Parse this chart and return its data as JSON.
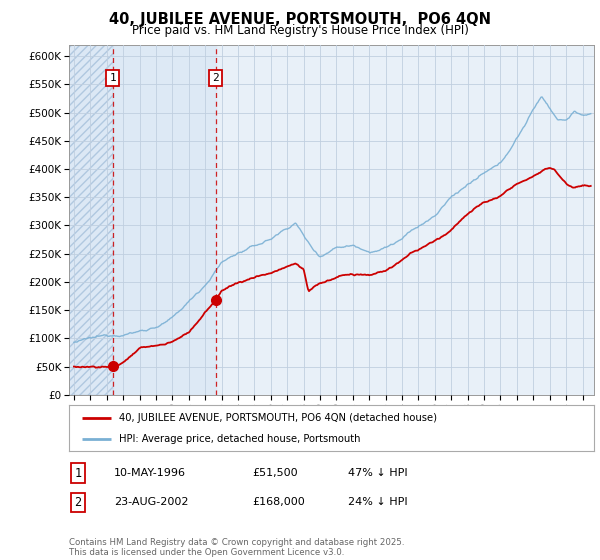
{
  "title": "40, JUBILEE AVENUE, PORTSMOUTH,  PO6 4QN",
  "subtitle": "Price paid vs. HM Land Registry's House Price Index (HPI)",
  "ylim": [
    0,
    620000
  ],
  "yticks": [
    0,
    50000,
    100000,
    150000,
    200000,
    250000,
    300000,
    350000,
    400000,
    450000,
    500000,
    550000,
    600000
  ],
  "ytick_labels": [
    "£0",
    "£50K",
    "£100K",
    "£150K",
    "£200K",
    "£250K",
    "£300K",
    "£350K",
    "£400K",
    "£450K",
    "£500K",
    "£550K",
    "£600K"
  ],
  "xlim_start": 1993.7,
  "xlim_end": 2025.7,
  "background_color": "#ffffff",
  "plot_bg_color": "#dce8f5",
  "plot_bg_color2": "#e8f0f8",
  "hatch_color": "#b8cce0",
  "grid_color": "#c0cfe0",
  "sale1_date": 1996.36,
  "sale1_price": 51500,
  "sale2_date": 2002.64,
  "sale2_price": 168000,
  "line1_color": "#cc0000",
  "line2_color": "#7ab0d4",
  "vline_color": "#cc0000",
  "shade_color": "#d0e4f5",
  "legend1_text": "40, JUBILEE AVENUE, PORTSMOUTH, PO6 4QN (detached house)",
  "legend2_text": "HPI: Average price, detached house, Portsmouth",
  "table_row1": [
    "1",
    "10-MAY-1996",
    "£51,500",
    "47% ↓ HPI"
  ],
  "table_row2": [
    "2",
    "23-AUG-2002",
    "£168,000",
    "24% ↓ HPI"
  ],
  "footnote": "Contains HM Land Registry data © Crown copyright and database right 2025.\nThis data is licensed under the Open Government Licence v3.0."
}
